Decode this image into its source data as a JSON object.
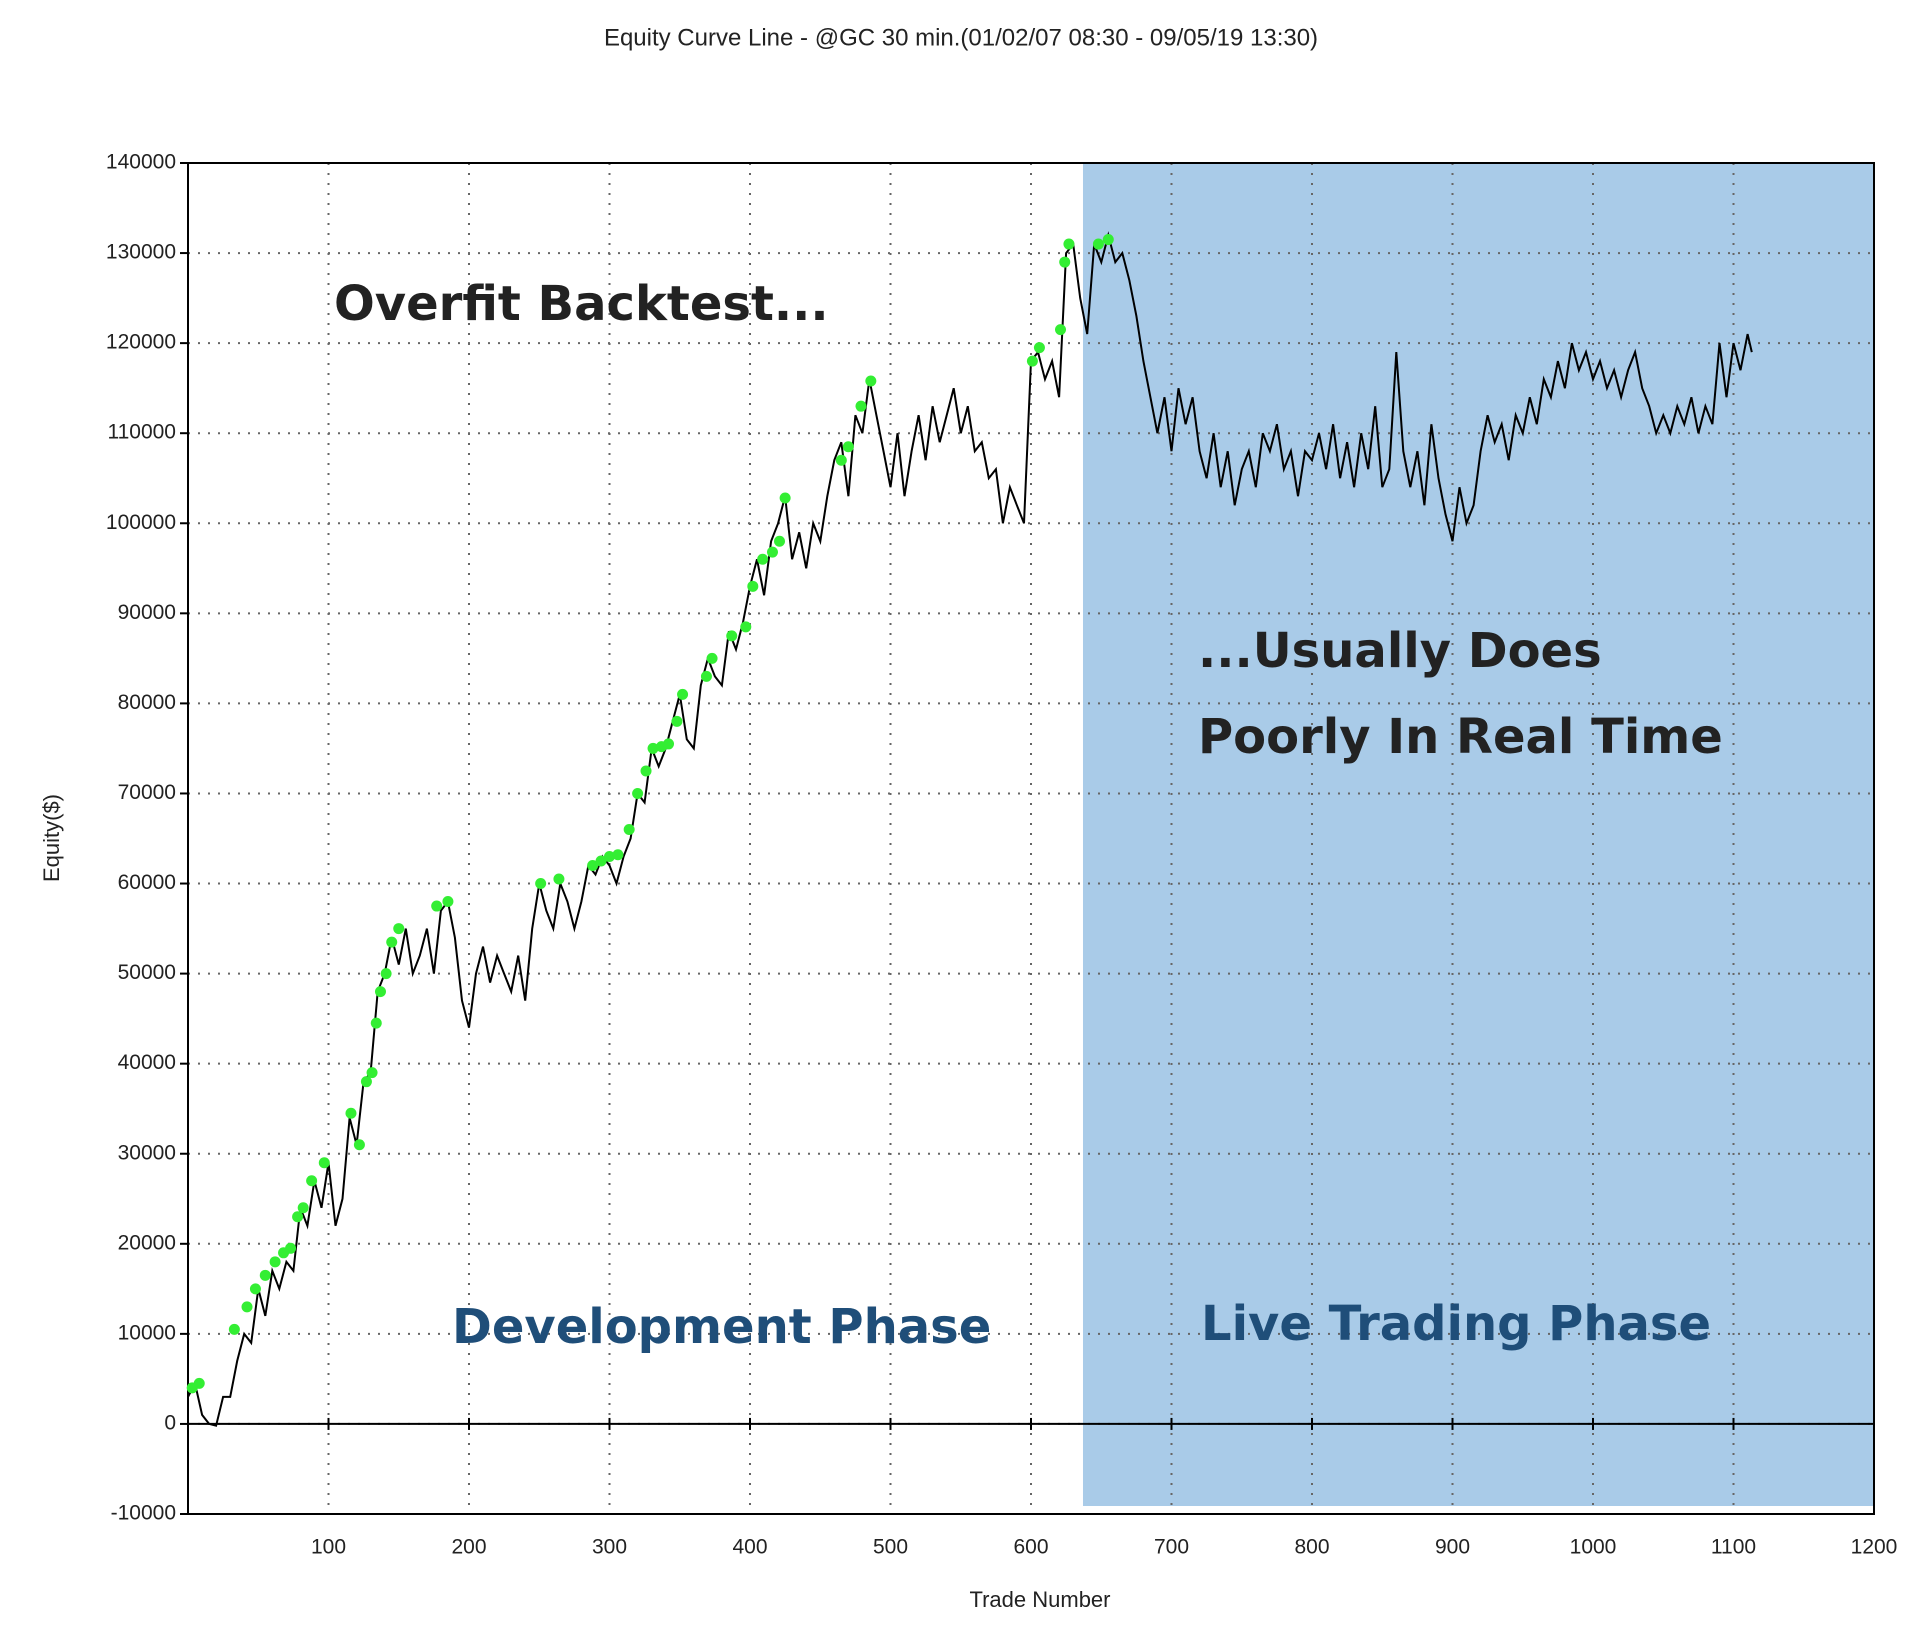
{
  "chart_data": {
    "type": "line",
    "title": "Equity Curve Line - @GC 30 min.(01/02/07 08:30 - 09/05/19 13:30)",
    "x_label": "Trade Number",
    "y_label": "Equity($)",
    "annotations": [
      "Overfit Backtest...",
      "...Usually Does",
      "Poorly In Real Time",
      "Development Phase",
      "Live Trading Phase"
    ],
    "xlim": [
      0,
      1200
    ],
    "ylim": [
      -10000,
      140000
    ],
    "xticks": [
      100,
      200,
      300,
      400,
      500,
      600,
      700,
      800,
      900,
      1000,
      1100,
      1200
    ],
    "yticks": [
      -10000,
      0,
      10000,
      20000,
      30000,
      40000,
      50000,
      60000,
      70000,
      80000,
      90000,
      100000,
      110000,
      120000,
      130000,
      140000
    ],
    "grid": true,
    "highlight_xrange": [
      637,
      1200
    ],
    "highlight_color": "#a9cbe8",
    "series": [
      {
        "color": "#000000",
        "x": [
          0,
          5,
          10,
          15,
          20,
          25,
          30,
          35,
          40,
          45,
          50,
          55,
          60,
          65,
          70,
          75,
          80,
          85,
          90,
          95,
          100,
          105,
          110,
          115,
          120,
          125,
          130,
          135,
          140,
          145,
          150,
          155,
          160,
          165,
          170,
          175,
          180,
          185,
          190,
          195,
          200,
          205,
          210,
          215,
          220,
          225,
          230,
          235,
          240,
          245,
          250,
          255,
          260,
          265,
          270,
          275,
          280,
          285,
          290,
          295,
          300,
          305,
          310,
          315,
          320,
          325,
          330,
          335,
          340,
          345,
          350,
          355,
          360,
          365,
          370,
          375,
          380,
          385,
          390,
          395,
          400,
          405,
          410,
          415,
          420,
          425,
          430,
          435,
          440,
          445,
          450,
          455,
          460,
          465,
          470,
          475,
          480,
          485,
          490,
          495,
          500,
          505,
          510,
          515,
          520,
          525,
          530,
          535,
          540,
          545,
          550,
          555,
          560,
          565,
          570,
          575,
          580,
          585,
          590,
          595,
          600,
          605,
          610,
          615,
          620,
          625,
          630,
          635,
          640,
          645,
          650,
          655,
          660,
          665,
          670,
          675,
          680,
          685,
          690,
          695,
          700,
          705,
          710,
          715,
          720,
          725,
          730,
          735,
          740,
          745,
          750,
          755,
          760,
          765,
          770,
          775,
          780,
          785,
          790,
          795,
          800,
          805,
          810,
          815,
          820,
          825,
          830,
          835,
          840,
          845,
          850,
          855,
          860,
          865,
          870,
          875,
          880,
          885,
          890,
          895,
          900,
          905,
          910,
          915,
          920,
          925,
          930,
          935,
          940,
          945,
          950,
          955,
          960,
          965,
          970,
          975,
          980,
          985,
          990,
          995,
          1000,
          1005,
          1010,
          1015,
          1020,
          1025,
          1030,
          1035,
          1040,
          1045,
          1050,
          1055,
          1060,
          1065,
          1070,
          1075,
          1080,
          1085,
          1090,
          1095,
          1100,
          1105,
          1110,
          1113
        ],
        "values": [
          3000,
          4500,
          1000,
          0,
          -200,
          3000,
          3000,
          7000,
          10000,
          9000,
          15000,
          12000,
          17000,
          15000,
          18000,
          17000,
          24000,
          22000,
          27000,
          24000,
          29000,
          22000,
          25000,
          34000,
          31000,
          38000,
          39000,
          48000,
          50000,
          54000,
          51000,
          55000,
          50000,
          52000,
          55000,
          50000,
          57000,
          58000,
          54000,
          47000,
          44000,
          50000,
          53000,
          49000,
          52000,
          50000,
          48000,
          52000,
          47000,
          55000,
          60000,
          57000,
          55000,
          60000,
          58000,
          55000,
          58000,
          62000,
          61000,
          63000,
          62000,
          60000,
          63000,
          65000,
          70000,
          69000,
          75000,
          73000,
          75000,
          78000,
          81000,
          76000,
          75000,
          82000,
          85000,
          83000,
          82000,
          88000,
          86000,
          89000,
          93000,
          96000,
          92000,
          98000,
          100000,
          103000,
          96000,
          99000,
          95000,
          100000,
          98000,
          103000,
          107000,
          109000,
          103000,
          112000,
          110000,
          116000,
          112000,
          108000,
          104000,
          110000,
          103000,
          108000,
          112000,
          107000,
          113000,
          109000,
          112000,
          115000,
          110000,
          113000,
          108000,
          109000,
          105000,
          106000,
          100000,
          104000,
          102000,
          100000,
          118000,
          119000,
          116000,
          118000,
          114000,
          130000,
          131000,
          125000,
          121000,
          131000,
          129000,
          132000,
          129000,
          130000,
          127000,
          123000,
          118000,
          114000,
          110000,
          114000,
          108000,
          115000,
          111000,
          114000,
          108000,
          105000,
          110000,
          104000,
          108000,
          102000,
          106000,
          108000,
          104000,
          110000,
          108000,
          111000,
          106000,
          108000,
          103000,
          108000,
          107000,
          110000,
          106000,
          111000,
          105000,
          109000,
          104000,
          110000,
          106000,
          113000,
          104000,
          106000,
          119000,
          108000,
          104000,
          108000,
          102000,
          111000,
          105000,
          101000,
          98000,
          104000,
          100000,
          102000,
          108000,
          112000,
          109000,
          111000,
          107000,
          112000,
          110000,
          114000,
          111000,
          116000,
          114000,
          118000,
          115000,
          120000,
          117000,
          119000,
          116000,
          118000,
          115000,
          117000,
          114000,
          117000,
          119000,
          115000,
          113000,
          110000,
          112000,
          110000,
          113000,
          111000,
          114000,
          110000,
          113000,
          111000,
          120000,
          114000,
          120000,
          117000,
          121000,
          119000
        ]
      }
    ],
    "markers": {
      "color": "#33ee33",
      "x": [
        3,
        8,
        33,
        42,
        48,
        55,
        62,
        68,
        73,
        78,
        82,
        88,
        97,
        116,
        122,
        127,
        131,
        134,
        137,
        141,
        145,
        150,
        177,
        185,
        251,
        264,
        288,
        294,
        300,
        306,
        314,
        320,
        326,
        331,
        337,
        342,
        348,
        352,
        369,
        373,
        387,
        397,
        402,
        409,
        416,
        421,
        425,
        465,
        470,
        479,
        486,
        601,
        606,
        621,
        624,
        627,
        648,
        655
      ],
      "values": [
        4000,
        4500,
        10500,
        13000,
        15000,
        16500,
        18000,
        19000,
        19500,
        23000,
        24000,
        27000,
        29000,
        34500,
        31000,
        38000,
        39000,
        44500,
        48000,
        50000,
        53500,
        55000,
        57500,
        58000,
        60000,
        60500,
        62000,
        62500,
        63000,
        63200,
        66000,
        70000,
        72500,
        75000,
        75200,
        75500,
        78000,
        81000,
        83000,
        85000,
        87500,
        88500,
        93000,
        96000,
        96800,
        98000,
        102800,
        107000,
        108500,
        113000,
        115800,
        118000,
        119500,
        121500,
        129000,
        131000,
        131000,
        131500
      ]
    }
  }
}
